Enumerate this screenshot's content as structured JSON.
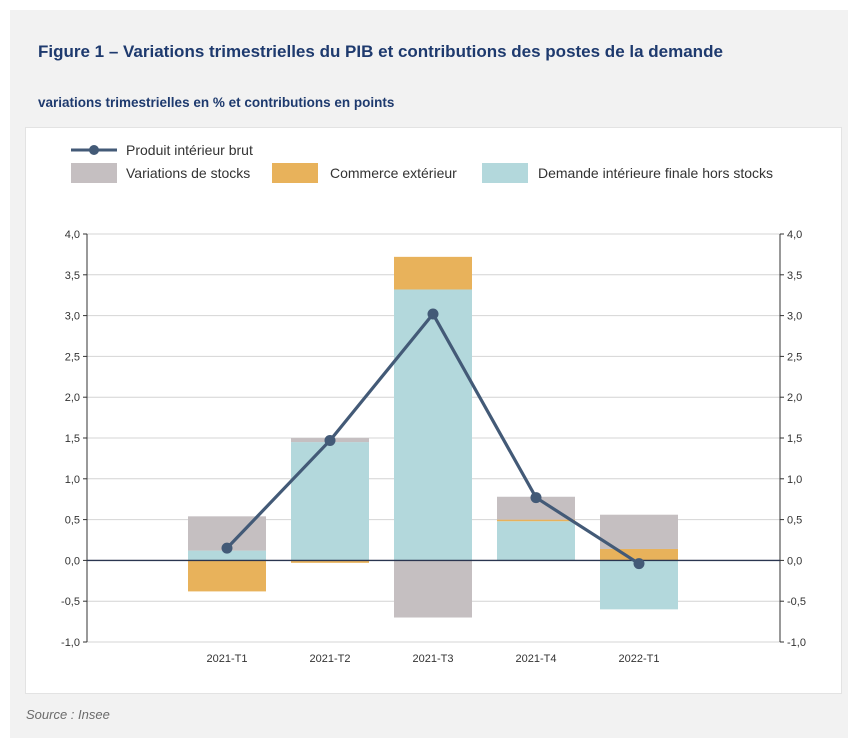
{
  "title": "Figure 1 – Variations trimestrielles du PIB et contributions des postes de la demande",
  "subtitle": "variations trimestrielles en % et contributions en points",
  "source": "Source : Insee",
  "colors": {
    "pib": "#435a77",
    "stocks": "#c5bfc1",
    "commerce": "#e8b25b",
    "demande": "#b3d8dc",
    "zero_line": "#2a3550",
    "grid": "#d4d4d4"
  },
  "chart_data": {
    "type": "bar",
    "stacked": true,
    "categories": [
      "2021-T1",
      "2021-T2",
      "2021-T3",
      "2021-T4",
      "2022-T1"
    ],
    "series": [
      {
        "name": "Demande intérieure finale hors stocks",
        "kind": "bar",
        "values": [
          0.12,
          1.45,
          3.32,
          0.48,
          -0.6
        ]
      },
      {
        "name": "Commerce extérieur",
        "kind": "bar",
        "values": [
          -0.38,
          -0.03,
          0.4,
          0.02,
          0.14
        ]
      },
      {
        "name": "Variations de stocks",
        "kind": "bar",
        "values": [
          0.42,
          0.05,
          -0.7,
          0.28,
          0.42
        ]
      },
      {
        "name": "Produit intérieur brut",
        "kind": "line",
        "values": [
          0.15,
          1.47,
          3.02,
          0.77,
          -0.04
        ]
      }
    ],
    "legend": [
      {
        "label": "Produit intérieur brut",
        "type": "line",
        "color": "#435a77"
      },
      {
        "label": "Variations de stocks",
        "type": "box",
        "color": "#c5bfc1"
      },
      {
        "label": "Commerce extérieur",
        "type": "box",
        "color": "#e8b25b"
      },
      {
        "label": "Demande intérieure finale hors stocks",
        "type": "box",
        "color": "#b3d8dc"
      }
    ],
    "legend_position": "top-left",
    "ylim": [
      -1.0,
      4.0
    ],
    "yticks": [
      "4,0",
      "3,5",
      "3,0",
      "2,5",
      "2,0",
      "1,5",
      "1,0",
      "0,5",
      "0,0",
      "-0,5",
      "-1,0"
    ],
    "grid": true,
    "xlabel": "",
    "ylabel": ""
  }
}
